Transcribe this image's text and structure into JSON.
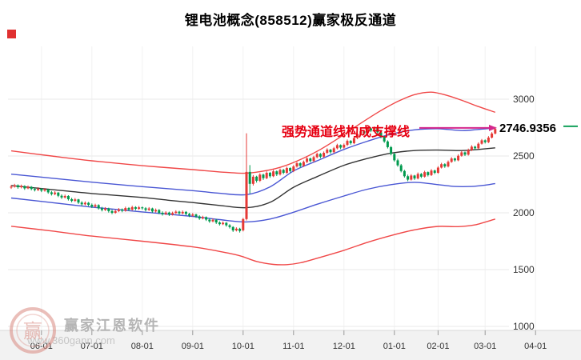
{
  "title": "锂电池概念(858512)赢家极反通道",
  "annotation": {
    "support_text": "强势通道线构成支撑线",
    "price_label": "2746.9356"
  },
  "watermark": {
    "brand": "赢家江恩软件",
    "url": "www.360gann.com"
  },
  "colors": {
    "up": "#e53935",
    "down": "#009a4e",
    "channel_red": "#f04848",
    "channel_blue": "#4a57d4",
    "channel_mid": "#333333",
    "support": "#d4288c",
    "annotation": "#e60012",
    "grid": "#e9e9e9",
    "grid_v": "#f2f2f2",
    "axis_text": "#333333",
    "strip_bg": "#f2f2f2",
    "strip_border": "#d8d8d8",
    "marker_green": "#13a05a",
    "red_marker": "#e03030",
    "watermark_text": "#b5b5b5",
    "watermark_url": "#c6c6c6",
    "logo": "#d9887f"
  },
  "chart_data": {
    "type": "candlestick",
    "title": "锂电池概念(858512)赢家极反通道",
    "xlabel": "",
    "ylabel": "",
    "ylim": [
      1000,
      3000
    ],
    "grid": true,
    "legend": false,
    "y_ticks": [
      3000,
      2500,
      2000,
      1500,
      1000
    ],
    "x_ticks": [
      {
        "label": "06-01",
        "i": 9
      },
      {
        "label": "07-01",
        "i": 24
      },
      {
        "label": "08-01",
        "i": 39
      },
      {
        "label": "09-01",
        "i": 54
      },
      {
        "label": "10-01",
        "i": 69
      },
      {
        "label": "11-01",
        "i": 84
      },
      {
        "label": "12-01",
        "i": 99
      },
      {
        "label": "01-01",
        "i": 114
      },
      {
        "label": "02-01",
        "i": 127
      },
      {
        "label": "03-01",
        "i": 141
      },
      {
        "label": "04-01",
        "i": 156
      }
    ],
    "support_line": {
      "value": 2746.9356,
      "label": "2746.9356",
      "text": "强势通道线构成支撑线"
    },
    "lines": {
      "top_red": [
        [
          0,
          2545
        ],
        [
          12,
          2500
        ],
        [
          24,
          2458
        ],
        [
          39,
          2415
        ],
        [
          54,
          2380
        ],
        [
          62,
          2360
        ],
        [
          69,
          2348
        ],
        [
          74,
          2362
        ],
        [
          80,
          2400
        ],
        [
          86,
          2468
        ],
        [
          92,
          2558
        ],
        [
          98,
          2668
        ],
        [
          104,
          2788
        ],
        [
          110,
          2900
        ],
        [
          115,
          2980
        ],
        [
          120,
          3040
        ],
        [
          125,
          3062
        ],
        [
          130,
          3030
        ],
        [
          135,
          2980
        ],
        [
          139,
          2935
        ],
        [
          144,
          2885
        ]
      ],
      "upper_blue": [
        [
          0,
          2340
        ],
        [
          12,
          2305
        ],
        [
          24,
          2270
        ],
        [
          39,
          2230
        ],
        [
          54,
          2195
        ],
        [
          62,
          2172
        ],
        [
          70,
          2160
        ],
        [
          77,
          2228
        ],
        [
          84,
          2368
        ],
        [
          91,
          2458
        ],
        [
          99,
          2558
        ],
        [
          106,
          2630
        ],
        [
          113,
          2692
        ],
        [
          120,
          2730
        ],
        [
          127,
          2740
        ],
        [
          134,
          2724
        ],
        [
          139,
          2734
        ],
        [
          144,
          2746
        ]
      ],
      "middle_black": [
        [
          0,
          2240
        ],
        [
          12,
          2205
        ],
        [
          24,
          2170
        ],
        [
          39,
          2135
        ],
        [
          47,
          2110
        ],
        [
          54,
          2090
        ],
        [
          62,
          2065
        ],
        [
          70,
          2045
        ],
        [
          77,
          2092
        ],
        [
          84,
          2225
        ],
        [
          91,
          2318
        ],
        [
          99,
          2418
        ],
        [
          106,
          2478
        ],
        [
          113,
          2525
        ],
        [
          120,
          2548
        ],
        [
          127,
          2552
        ],
        [
          134,
          2548
        ],
        [
          139,
          2558
        ],
        [
          144,
          2572
        ]
      ],
      "lower_blue": [
        [
          0,
          2130
        ],
        [
          12,
          2090
        ],
        [
          24,
          2050
        ],
        [
          39,
          2008
        ],
        [
          54,
          1968
        ],
        [
          62,
          1940
        ],
        [
          70,
          1920
        ],
        [
          77,
          1945
        ],
        [
          84,
          2005
        ],
        [
          91,
          2075
        ],
        [
          99,
          2148
        ],
        [
          106,
          2208
        ],
        [
          113,
          2248
        ],
        [
          120,
          2268
        ],
        [
          127,
          2248
        ],
        [
          132,
          2232
        ],
        [
          137,
          2232
        ],
        [
          141,
          2244
        ],
        [
          144,
          2258
        ]
      ],
      "bottom_red": [
        [
          0,
          1882
        ],
        [
          12,
          1840
        ],
        [
          24,
          1795
        ],
        [
          39,
          1750
        ],
        [
          54,
          1700
        ],
        [
          62,
          1660
        ],
        [
          68,
          1622
        ],
        [
          73,
          1572
        ],
        [
          78,
          1546
        ],
        [
          82,
          1544
        ],
        [
          86,
          1560
        ],
        [
          91,
          1600
        ],
        [
          99,
          1670
        ],
        [
          106,
          1740
        ],
        [
          113,
          1800
        ],
        [
          120,
          1850
        ],
        [
          127,
          1880
        ],
        [
          133,
          1878
        ],
        [
          138,
          1894
        ],
        [
          144,
          1945
        ]
      ]
    },
    "candles": [
      [
        2222,
        2245,
        2210,
        2230
      ],
      [
        2230,
        2255,
        2222,
        2242
      ],
      [
        2242,
        2250,
        2212,
        2225
      ],
      [
        2225,
        2248,
        2215,
        2235
      ],
      [
        2235,
        2242,
        2202,
        2215
      ],
      [
        2215,
        2240,
        2208,
        2228
      ],
      [
        2228,
        2235,
        2198,
        2210
      ],
      [
        2210,
        2222,
        2188,
        2200
      ],
      [
        2200,
        2225,
        2192,
        2212
      ],
      [
        2212,
        2218,
        2182,
        2195
      ],
      [
        2195,
        2218,
        2186,
        2205
      ],
      [
        2205,
        2212,
        2168,
        2180
      ],
      [
        2180,
        2192,
        2152,
        2165
      ],
      [
        2165,
        2190,
        2155,
        2178
      ],
      [
        2178,
        2182,
        2138,
        2150
      ],
      [
        2150,
        2162,
        2122,
        2135
      ],
      [
        2135,
        2160,
        2126,
        2148
      ],
      [
        2148,
        2155,
        2108,
        2120
      ],
      [
        2120,
        2132,
        2092,
        2105
      ],
      [
        2105,
        2130,
        2096,
        2118
      ],
      [
        2118,
        2122,
        2078,
        2090
      ],
      [
        2090,
        2102,
        2062,
        2075
      ],
      [
        2075,
        2100,
        2066,
        2088
      ],
      [
        2088,
        2095,
        2058,
        2070
      ],
      [
        2070,
        2082,
        2042,
        2055
      ],
      [
        2055,
        2080,
        2046,
        2068
      ],
      [
        2068,
        2075,
        2028,
        2040
      ],
      [
        2040,
        2052,
        2012,
        2025
      ],
      [
        2025,
        2050,
        2016,
        2038
      ],
      [
        2038,
        2045,
        2002,
        2015
      ],
      [
        2015,
        2028,
        1988,
        2000
      ],
      [
        2000,
        2028,
        1992,
        2015
      ],
      [
        2015,
        2042,
        2006,
        2030
      ],
      [
        2030,
        2038,
        2005,
        2018
      ],
      [
        2018,
        2054,
        2010,
        2042
      ],
      [
        2042,
        2050,
        2015,
        2028
      ],
      [
        2028,
        2062,
        2020,
        2050
      ],
      [
        2050,
        2058,
        2022,
        2035
      ],
      [
        2035,
        2060,
        2026,
        2048
      ],
      [
        2048,
        2055,
        2028,
        2040
      ],
      [
        2040,
        2050,
        2012,
        2025
      ],
      [
        2025,
        2050,
        2016,
        2038
      ],
      [
        2038,
        2045,
        2000,
        2012
      ],
      [
        2012,
        2038,
        2002,
        2025
      ],
      [
        2025,
        2032,
        1988,
        2000
      ],
      [
        2000,
        2012,
        1975,
        1988
      ],
      [
        1988,
        2014,
        1980,
        2002
      ],
      [
        2002,
        2010,
        1972,
        1985
      ],
      [
        1985,
        2010,
        1976,
        1998
      ],
      [
        1998,
        2022,
        1990,
        2010
      ],
      [
        2010,
        2018,
        1982,
        1995
      ],
      [
        1995,
        2020,
        1986,
        2008
      ],
      [
        2008,
        2015,
        1978,
        1990
      ],
      [
        1990,
        2000,
        1962,
        1975
      ],
      [
        1975,
        1998,
        1966,
        1985
      ],
      [
        1985,
        1992,
        1955,
        1968
      ],
      [
        1968,
        1978,
        1938,
        1950
      ],
      [
        1950,
        1974,
        1942,
        1962
      ],
      [
        1962,
        1968,
        1928,
        1940
      ],
      [
        1940,
        1950,
        1912,
        1925
      ],
      [
        1925,
        1950,
        1916,
        1938
      ],
      [
        1938,
        1945,
        1902,
        1915
      ],
      [
        1915,
        1925,
        1888,
        1900
      ],
      [
        1900,
        1924,
        1892,
        1912
      ],
      [
        1912,
        1918,
        1878,
        1890
      ],
      [
        1890,
        1900,
        1862,
        1875
      ],
      [
        1875,
        1882,
        1832,
        1845
      ],
      [
        1845,
        1872,
        1836,
        1860
      ],
      [
        1860,
        1868,
        1826,
        1840
      ],
      [
        1846,
        1955,
        1836,
        1945
      ],
      [
        1945,
        2700,
        1932,
        2360
      ],
      [
        2360,
        2420,
        2170,
        2255
      ],
      [
        2255,
        2332,
        2240,
        2318
      ],
      [
        2318,
        2326,
        2266,
        2282
      ],
      [
        2282,
        2348,
        2272,
        2336
      ],
      [
        2336,
        2344,
        2290,
        2305
      ],
      [
        2305,
        2365,
        2296,
        2352
      ],
      [
        2352,
        2360,
        2308,
        2322
      ],
      [
        2322,
        2378,
        2314,
        2365
      ],
      [
        2365,
        2372,
        2324,
        2338
      ],
      [
        2338,
        2390,
        2328,
        2378
      ],
      [
        2378,
        2386,
        2340,
        2352
      ],
      [
        2352,
        2406,
        2344,
        2394
      ],
      [
        2394,
        2400,
        2354,
        2368
      ],
      [
        2368,
        2420,
        2358,
        2408
      ],
      [
        2408,
        2448,
        2398,
        2436
      ],
      [
        2436,
        2444,
        2400,
        2414
      ],
      [
        2414,
        2460,
        2404,
        2448
      ],
      [
        2448,
        2490,
        2438,
        2478
      ],
      [
        2478,
        2486,
        2444,
        2456
      ],
      [
        2456,
        2502,
        2446,
        2490
      ],
      [
        2490,
        2530,
        2480,
        2518
      ],
      [
        2518,
        2526,
        2480,
        2494
      ],
      [
        2494,
        2540,
        2484,
        2528
      ],
      [
        2528,
        2568,
        2518,
        2556
      ],
      [
        2556,
        2562,
        2520,
        2534
      ],
      [
        2534,
        2580,
        2524,
        2568
      ],
      [
        2568,
        2608,
        2558,
        2596
      ],
      [
        2596,
        2602,
        2560,
        2574
      ],
      [
        2574,
        2610,
        2564,
        2598
      ],
      [
        2598,
        2645,
        2588,
        2633
      ],
      [
        2633,
        2640,
        2600,
        2613
      ],
      [
        2613,
        2670,
        2604,
        2658
      ],
      [
        2658,
        2705,
        2648,
        2693
      ],
      [
        2693,
        2730,
        2684,
        2718
      ],
      [
        2718,
        2726,
        2684,
        2698
      ],
      [
        2698,
        2755,
        2690,
        2743
      ],
      [
        2743,
        2750,
        2710,
        2723
      ],
      [
        2723,
        2760,
        2714,
        2748
      ],
      [
        2748,
        2754,
        2696,
        2708
      ],
      [
        2708,
        2716,
        2656,
        2668
      ],
      [
        2668,
        2678,
        2616,
        2628
      ],
      [
        2628,
        2638,
        2566,
        2578
      ],
      [
        2578,
        2588,
        2506,
        2518
      ],
      [
        2518,
        2528,
        2450,
        2462
      ],
      [
        2462,
        2476,
        2406,
        2418
      ],
      [
        2418,
        2430,
        2356,
        2368
      ],
      [
        2368,
        2378,
        2310,
        2322
      ],
      [
        2322,
        2336,
        2278,
        2292
      ],
      [
        2292,
        2340,
        2284,
        2328
      ],
      [
        2328,
        2334,
        2290,
        2302
      ],
      [
        2302,
        2355,
        2294,
        2342
      ],
      [
        2342,
        2350,
        2306,
        2318
      ],
      [
        2318,
        2370,
        2310,
        2358
      ],
      [
        2358,
        2364,
        2320,
        2332
      ],
      [
        2332,
        2385,
        2324,
        2372
      ],
      [
        2372,
        2380,
        2340,
        2352
      ],
      [
        2352,
        2410,
        2344,
        2398
      ],
      [
        2398,
        2440,
        2390,
        2428
      ],
      [
        2428,
        2436,
        2396,
        2408
      ],
      [
        2408,
        2460,
        2400,
        2448
      ],
      [
        2448,
        2490,
        2440,
        2478
      ],
      [
        2478,
        2486,
        2450,
        2462
      ],
      [
        2462,
        2515,
        2454,
        2502
      ],
      [
        2502,
        2545,
        2494,
        2532
      ],
      [
        2532,
        2540,
        2500,
        2512
      ],
      [
        2512,
        2565,
        2504,
        2552
      ],
      [
        2552,
        2595,
        2544,
        2582
      ],
      [
        2582,
        2590,
        2554,
        2568
      ],
      [
        2568,
        2620,
        2560,
        2608
      ],
      [
        2608,
        2650,
        2600,
        2638
      ],
      [
        2638,
        2646,
        2610,
        2622
      ],
      [
        2622,
        2675,
        2614,
        2662
      ],
      [
        2662,
        2710,
        2654,
        2698
      ],
      [
        2698,
        2756,
        2690,
        2738
      ]
    ]
  }
}
